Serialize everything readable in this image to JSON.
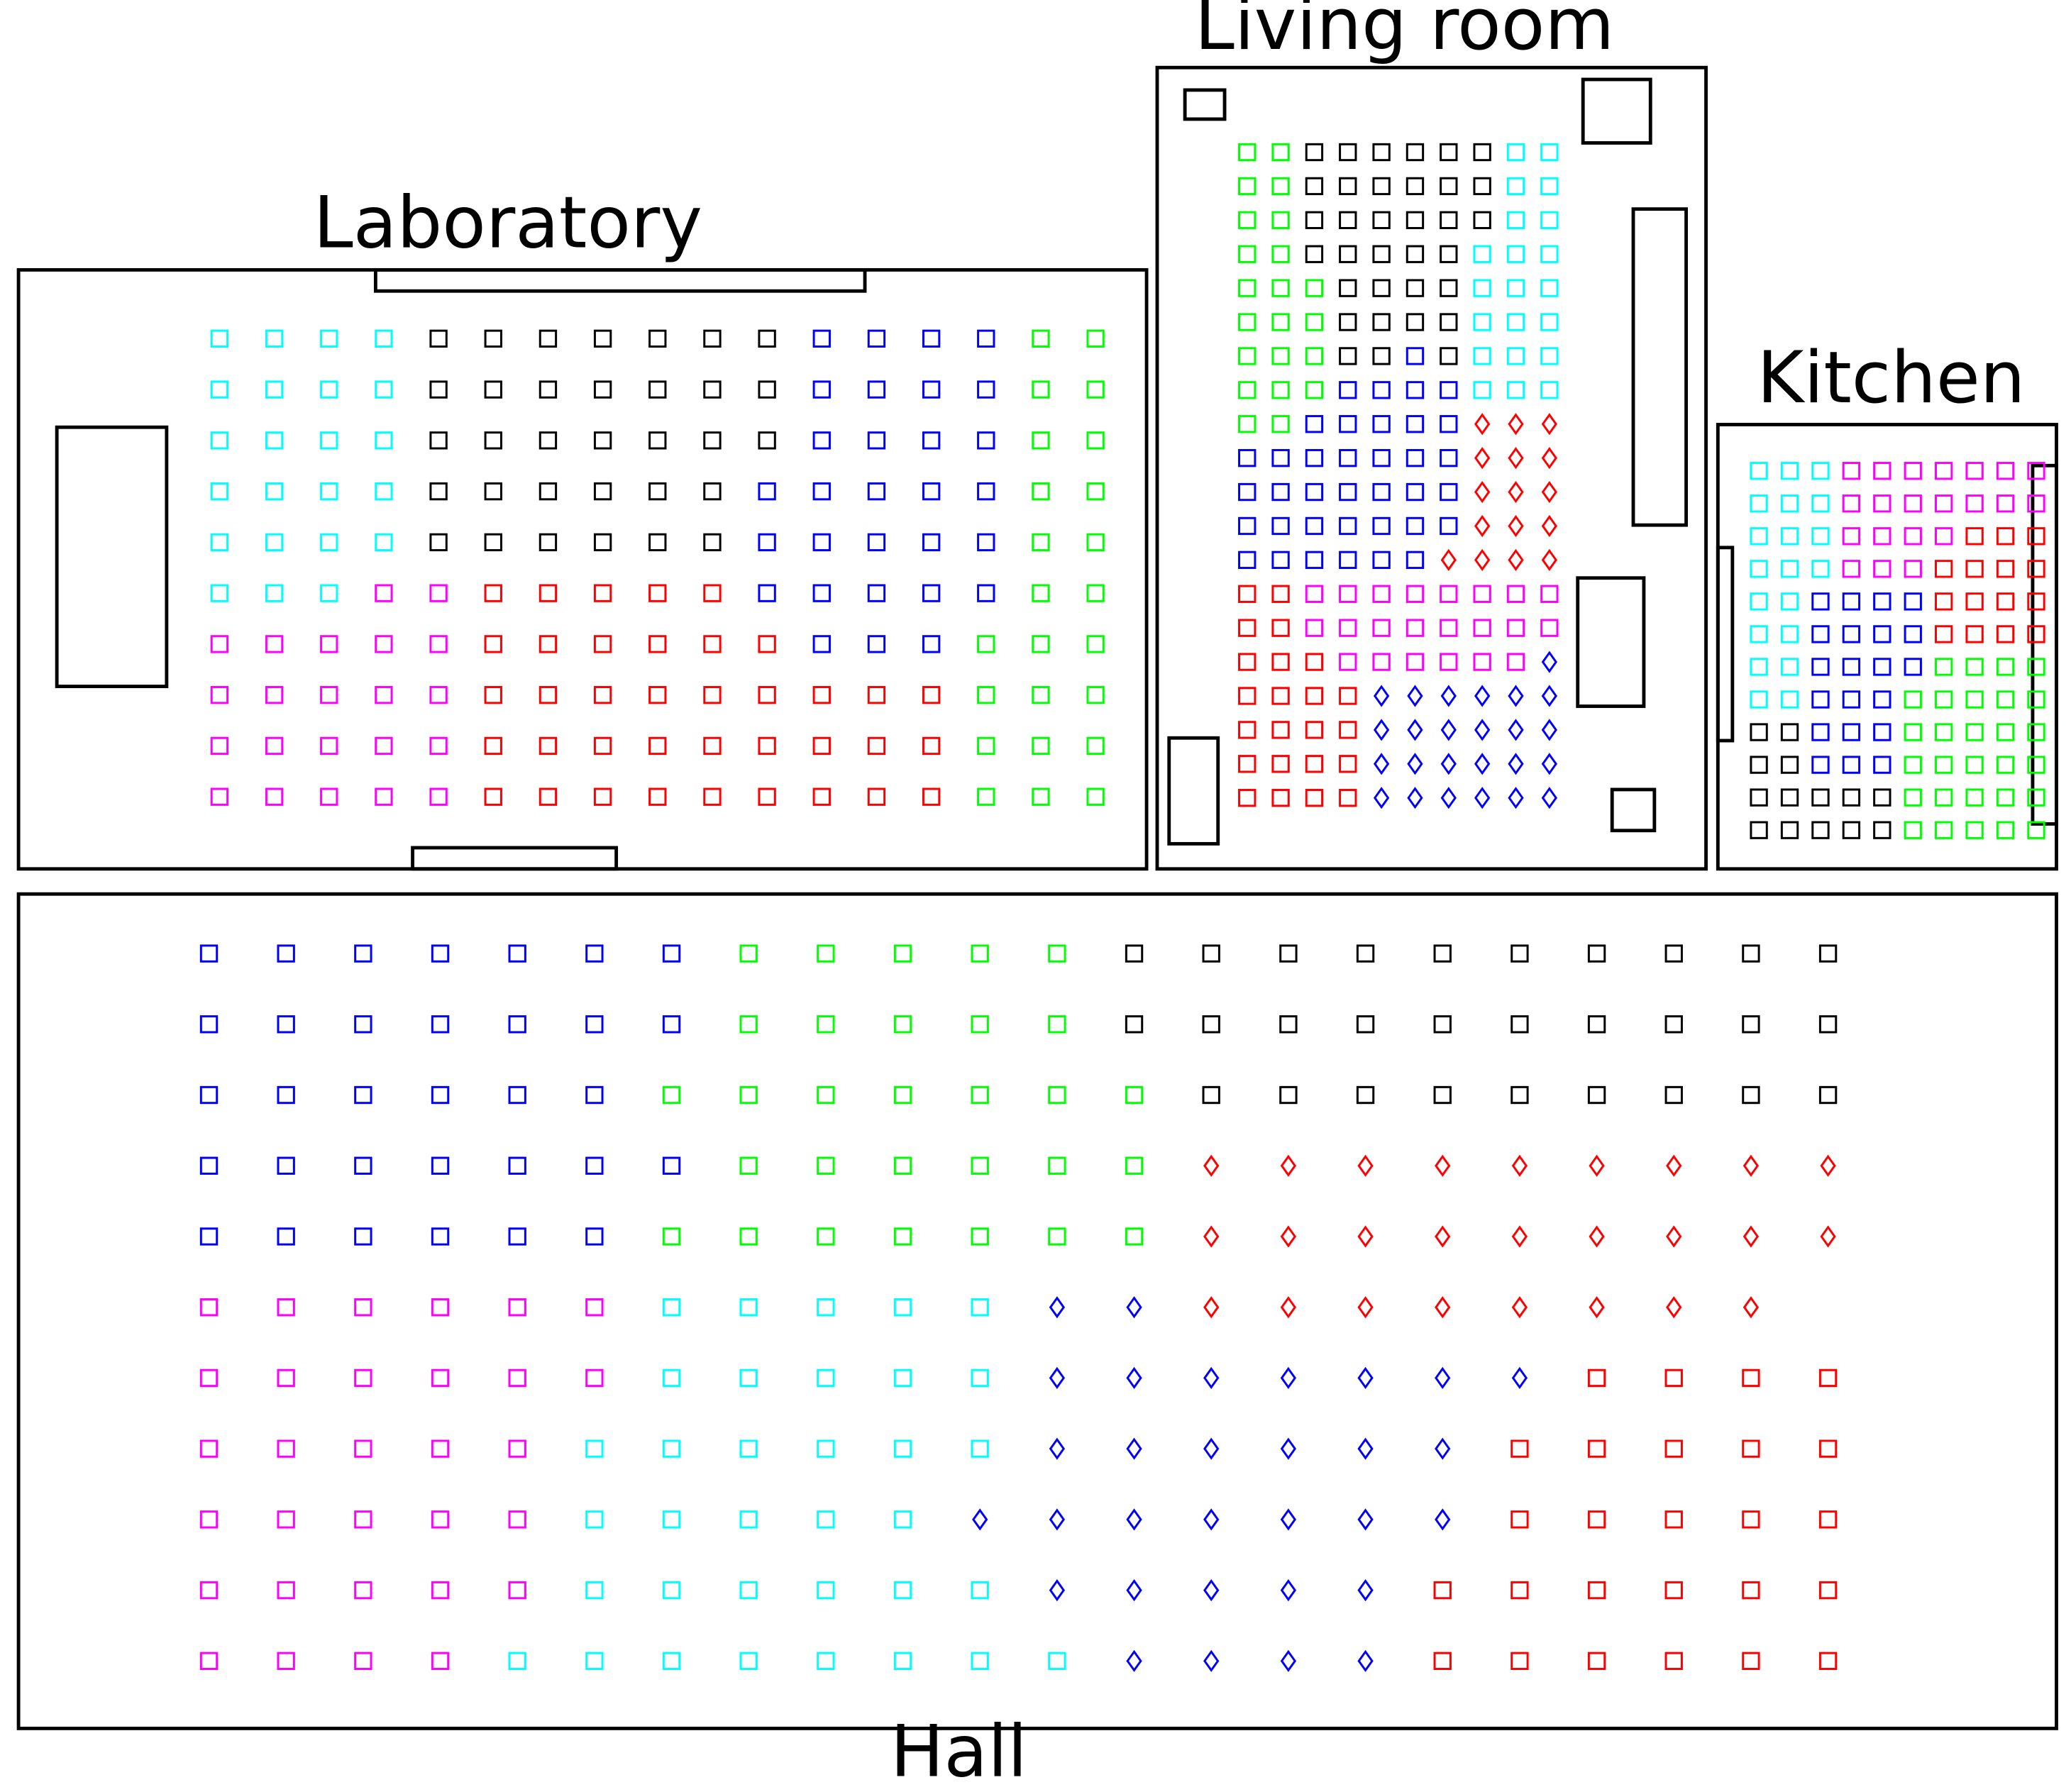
{
  "colors": {
    "c": "#00ffff",
    "k": "#000000",
    "b": "#0000ff",
    "g": "#00ff00",
    "m": "#ff00ff",
    "r": "#ff0000",
    "d": "#ff0000",
    "e": "#0000ff"
  },
  "marker_types": {
    "square": [
      "c",
      "k",
      "b",
      "g",
      "m",
      "r"
    ],
    "diamond": [
      "d",
      "e"
    ]
  },
  "rooms": [
    {
      "id": "laboratory",
      "label": "Laboratory",
      "grid": [
        "cccckkkkkkkbbbbgg",
        "cccckkkkkkkbbbbgg",
        "cccckkkkkkkbbbbgg",
        "cccckkkkkkbbbbbgg",
        "cccckkkkkkbbbbbgg",
        "cccmmrrrrrbbbbbgg",
        "mmmmmrrrrrrbbbggg",
        "mmmmmrrrrrrrrrggg",
        "mmmmmrrrrrrrrrggg",
        "mmmmmrrrrrrrrrggg"
      ]
    },
    {
      "id": "living-room",
      "label": "Living room",
      "grid": [
        "ggkkkkkkcc",
        "ggkkkkkkcc",
        "ggkkkkkkcc",
        "ggkkkkkccc",
        "gggkkkkccc",
        "gggkkkkccc",
        "gggkkbkccc",
        "gggbbbbccc",
        "ggbbbbbddd",
        "bbbbbbbddd",
        "bbbbbbbddd",
        "bbbbbbbddd",
        "bbbbbbdddd",
        "rrmmmmmmmm",
        "rrmmmmmmmm",
        "rrrmmmmmme",
        "rrrreeeeee",
        "rrrreeeeee",
        "rrrreeeeee",
        "rrrreeeeee"
      ]
    },
    {
      "id": "kitchen",
      "label": "Kitchen",
      "grid": [
        "cccmmmmmmm",
        "cccmmmmmmm",
        "cccmmmmrrr",
        "cccmmmrrrr",
        "ccbbbbrrrr",
        "ccbbbbrrrr",
        "ccbbbbgggg",
        "ccbbbggggg",
        "kkbbbggggg",
        "kkbbbggggg",
        "kkkkkggggg",
        "kkkkkggggg"
      ]
    },
    {
      "id": "hall",
      "label": "Hall",
      "grid": [
        "bbbbbbbgggggkkkkkkkkkk",
        "bbbbbbbgggggkkkkkkkkkk",
        "bbbbbbgggggggkkkkkkkkk",
        "bbbbbbbggggggddddddddd",
        "bbbbbbgggggggddddddddd",
        "mmmmmmccccceedddddddd",
        "mmmmmmccccceeeeeeerrrr",
        "mmmmmcccccceeeeeerrrrr",
        "mmmmmccccceeeeeeerrrrr",
        "mmmmmcccccceeeeerrrrrr",
        "mmmmcccccccceeeerrrrrr"
      ]
    }
  ]
}
